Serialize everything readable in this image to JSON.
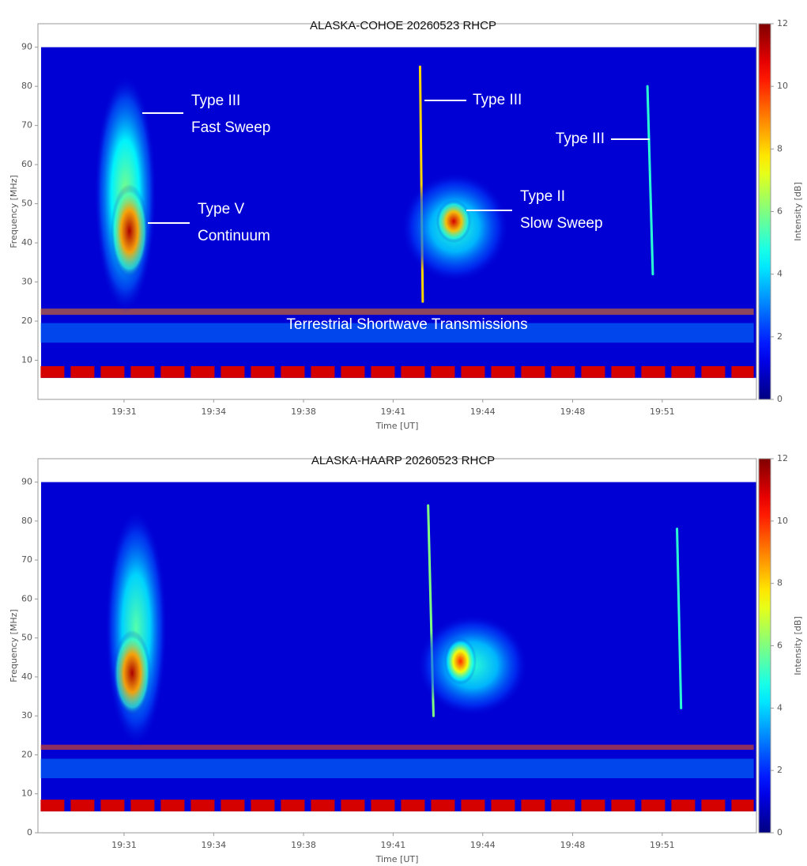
{
  "chart_data": [
    {
      "type": "spectrogram",
      "title": "ALASKA-COHOE 20260523 RHCP",
      "xlabel": "Time [UT]",
      "ylabel": "Frequency [MHz]",
      "colormap": "jet",
      "colorbar_label": "Intensity [dB]",
      "clim": [
        0,
        12
      ],
      "cticks": [
        0,
        2,
        4,
        6,
        8,
        10,
        12
      ],
      "xlim": [
        1167.8,
        1194.5
      ],
      "ylim": [
        0,
        96
      ],
      "xticks": [
        {
          "value": 1171,
          "label": "19:31"
        },
        {
          "value": 1174.33,
          "label": "19:34"
        },
        {
          "value": 1177.67,
          "label": "19:38"
        },
        {
          "value": 1181,
          "label": "19:41"
        },
        {
          "value": 1184.33,
          "label": "19:44"
        },
        {
          "value": 1187.67,
          "label": "19:48"
        },
        {
          "value": 1191,
          "label": "19:51"
        }
      ],
      "yticks": [
        10,
        20,
        30,
        40,
        50,
        60,
        70,
        80,
        90
      ],
      "background": 1,
      "freq_range": [
        5.5,
        90
      ],
      "features": [
        {
          "kind": "band",
          "t": [
            1167.9,
            1194.4
          ],
          "f": [
            14.5,
            19.5
          ],
          "peak": 3
        },
        {
          "kind": "band",
          "t": [
            1167.9,
            1194.4
          ],
          "f": [
            21.6,
            23.2
          ],
          "peak": 9
        },
        {
          "kind": "calibration",
          "t": [
            1167.9,
            1194.4
          ],
          "f": [
            5.5,
            8.5
          ],
          "peak": 11
        },
        {
          "kind": "continuum",
          "t": [
            1169.9,
            1172.2
          ],
          "f": [
            22,
            83
          ],
          "peak": 6
        },
        {
          "kind": "continuum",
          "t": [
            1170.5,
            1171.9
          ],
          "f": [
            31,
            55
          ],
          "peak": 11.5
        },
        {
          "kind": "sweep",
          "t": [
            1182.0,
            1182.1
          ],
          "f": [
            25,
            85
          ],
          "peak": 8
        },
        {
          "kind": "continuum",
          "t": [
            1181.3,
            1185.3
          ],
          "f": [
            30,
            58
          ],
          "peak": 5
        },
        {
          "kind": "continuum",
          "t": [
            1182.6,
            1183.9
          ],
          "f": [
            40,
            51
          ],
          "peak": 11
        },
        {
          "kind": "sweep",
          "t": [
            1190.45,
            1190.65
          ],
          "f": [
            32,
            80
          ],
          "peak": 5
        }
      ],
      "annotations": [
        {
          "lines": [
            "Type III",
            "Fast Sweep"
          ]
        },
        {
          "lines": [
            "Type V",
            "Continuum"
          ]
        },
        {
          "lines": [
            "Type III"
          ]
        },
        {
          "lines": [
            "Type II",
            "Slow Sweep"
          ]
        },
        {
          "lines": [
            "Type III"
          ]
        },
        {
          "lines": [
            "Terrestrial Shortwave Transmissions"
          ]
        }
      ]
    },
    {
      "type": "spectrogram",
      "title": "ALASKA-HAARP 20260523 RHCP",
      "xlabel": "Time [UT]",
      "ylabel": "Frequency [MHz]",
      "colormap": "jet",
      "colorbar_label": "Intensity [dB]",
      "clim": [
        0,
        12
      ],
      "cticks": [
        0,
        2,
        4,
        6,
        8,
        10,
        12
      ],
      "xlim": [
        1167.8,
        1194.5
      ],
      "ylim": [
        0,
        96
      ],
      "xticks": [
        {
          "value": 1171,
          "label": "19:31"
        },
        {
          "value": 1174.33,
          "label": "19:34"
        },
        {
          "value": 1177.67,
          "label": "19:38"
        },
        {
          "value": 1181,
          "label": "19:41"
        },
        {
          "value": 1184.33,
          "label": "19:44"
        },
        {
          "value": 1187.67,
          "label": "19:48"
        },
        {
          "value": 1191,
          "label": "19:51"
        }
      ],
      "yticks": [
        0,
        10,
        20,
        30,
        40,
        50,
        60,
        70,
        80,
        90
      ],
      "background": 1,
      "freq_range": [
        5.5,
        90
      ],
      "features": [
        {
          "kind": "band",
          "t": [
            1167.9,
            1194.4
          ],
          "f": [
            14,
            19
          ],
          "peak": 3
        },
        {
          "kind": "band",
          "t": [
            1167.9,
            1194.4
          ],
          "f": [
            21.3,
            22.6
          ],
          "peak": 9.5
        },
        {
          "kind": "calibration",
          "t": [
            1167.9,
            1194.4
          ],
          "f": [
            5.5,
            8.5
          ],
          "peak": 11
        },
        {
          "kind": "continuum",
          "t": [
            1170.3,
            1172.6
          ],
          "f": [
            22,
            83
          ],
          "peak": 5.5
        },
        {
          "kind": "continuum",
          "t": [
            1170.6,
            1172.0
          ],
          "f": [
            30,
            52
          ],
          "peak": 11.5
        },
        {
          "kind": "sweep",
          "t": [
            1182.3,
            1182.5
          ],
          "f": [
            30,
            84
          ],
          "peak": 6
        },
        {
          "kind": "continuum",
          "t": [
            1181.9,
            1186.0
          ],
          "f": [
            30,
            56
          ],
          "peak": 5
        },
        {
          "kind": "continuum",
          "t": [
            1182.9,
            1184.1
          ],
          "f": [
            38,
            50
          ],
          "peak": 10
        },
        {
          "kind": "sweep",
          "t": [
            1191.55,
            1191.7
          ],
          "f": [
            32,
            78
          ],
          "peak": 5
        }
      ]
    }
  ]
}
